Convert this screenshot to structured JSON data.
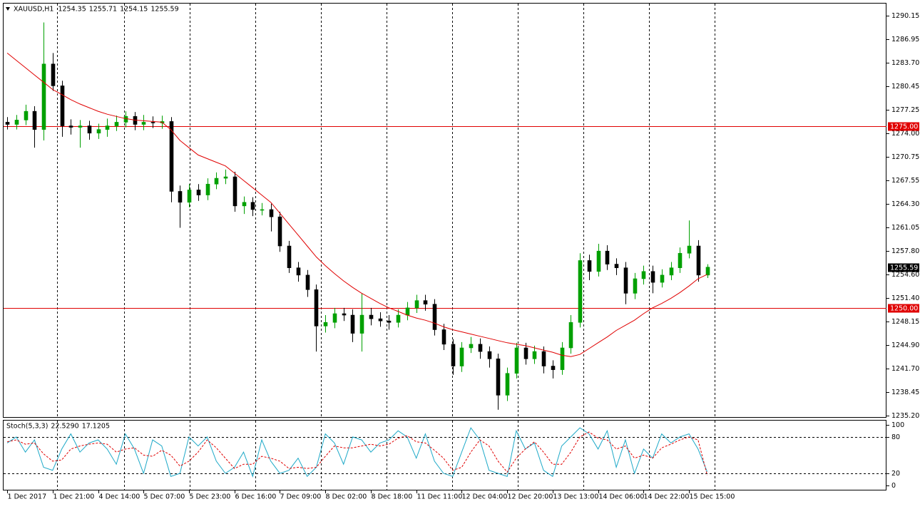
{
  "chart_data": {
    "type": "candlestick",
    "symbol": "XAUUSD,H1",
    "header_values": [
      1254.35,
      1255.71,
      1254.15,
      1255.59
    ],
    "x": [
      0,
      4,
      8,
      12,
      16,
      20,
      24,
      28,
      32,
      36,
      40,
      44,
      48,
      52,
      56,
      60,
      64,
      68,
      72,
      76,
      80,
      84,
      88,
      92,
      96,
      100,
      104,
      108,
      112,
      116,
      120,
      124,
      128,
      132,
      136,
      140,
      144,
      148,
      152,
      156,
      160,
      164,
      168,
      172,
      176,
      180,
      184,
      188,
      192,
      196,
      200,
      204,
      208,
      212,
      216,
      220,
      224,
      228,
      232,
      236,
      240,
      244,
      248,
      252,
      256,
      260,
      264,
      268,
      272,
      276,
      280,
      284,
      288,
      292,
      296,
      300,
      304,
      308
    ],
    "open": [
      1275.5,
      1275.2,
      1275.8,
      1277.0,
      1274.5,
      1283.5,
      1280.5,
      1275.0,
      1274.8,
      1275.0,
      1274.0,
      1274.5,
      1275.0,
      1275.5,
      1276.3,
      1275.2,
      1275.5,
      1275.4,
      1275.6,
      1266.0,
      1264.5,
      1266.2,
      1265.5,
      1267.0,
      1267.8,
      1268.0,
      1264.0,
      1264.5,
      1263.5,
      1263.5,
      1262.5,
      1258.5,
      1255.5,
      1254.5,
      1252.5,
      1247.5,
      1248.0,
      1249.2,
      1249.0,
      1246.5,
      1249.0,
      1248.5,
      1248.2,
      1248.0,
      1249.0,
      1250.0,
      1251.0,
      1250.5,
      1247.0,
      1245.0,
      1242.0,
      1244.5,
      1245.0,
      1244.0,
      1243.0,
      1238.0,
      1241.0,
      1244.5,
      1243.0,
      1244.0,
      1242.0,
      1241.5,
      1244.5,
      1248.0,
      1256.5,
      1255.0,
      1257.8,
      1256.0,
      1255.5,
      1252.0,
      1254.0,
      1255.0,
      1253.5,
      1254.5,
      1255.5,
      1257.5,
      1258.5,
      1254.5
    ],
    "high": [
      1276.2,
      1276.5,
      1277.9,
      1277.7,
      1289.2,
      1285.0,
      1281.2,
      1275.9,
      1275.8,
      1275.7,
      1275.3,
      1276.0,
      1276.4,
      1277.0,
      1276.9,
      1276.5,
      1276.3,
      1276.4,
      1276.2,
      1266.8,
      1267.0,
      1267.0,
      1267.8,
      1268.6,
      1269.0,
      1268.7,
      1265.3,
      1265.2,
      1264.4,
      1264.3,
      1263.2,
      1259.2,
      1256.3,
      1255.2,
      1253.2,
      1249.0,
      1250.0,
      1250.0,
      1249.8,
      1252.0,
      1250.0,
      1249.4,
      1249.0,
      1249.8,
      1250.8,
      1251.8,
      1251.8,
      1251.2,
      1247.8,
      1245.7,
      1245.3,
      1246.0,
      1245.8,
      1244.7,
      1243.7,
      1241.8,
      1245.2,
      1245.2,
      1244.8,
      1244.7,
      1242.8,
      1245.3,
      1249.0,
      1257.5,
      1257.3,
      1258.8,
      1258.6,
      1256.8,
      1256.3,
      1254.8,
      1255.8,
      1255.8,
      1255.3,
      1256.3,
      1258.3,
      1262.0,
      1259.3,
      1256.0
    ],
    "low": [
      1274.5,
      1274.5,
      1275.1,
      1272.0,
      1273.0,
      1279.8,
      1273.5,
      1273.8,
      1272.0,
      1273.1,
      1273.2,
      1273.5,
      1274.3,
      1274.8,
      1274.4,
      1274.4,
      1274.7,
      1274.6,
      1264.5,
      1261.0,
      1263.8,
      1264.7,
      1264.8,
      1266.3,
      1267.0,
      1263.2,
      1262.9,
      1262.6,
      1262.7,
      1260.5,
      1257.7,
      1254.8,
      1253.6,
      1251.5,
      1244.0,
      1246.6,
      1247.2,
      1248.2,
      1245.3,
      1244.0,
      1247.6,
      1247.4,
      1247.0,
      1247.3,
      1248.3,
      1249.3,
      1249.6,
      1246.2,
      1244.2,
      1240.8,
      1241.2,
      1243.8,
      1243.0,
      1241.8,
      1236.0,
      1237.2,
      1240.3,
      1242.2,
      1242.3,
      1241.0,
      1240.3,
      1240.8,
      1243.7,
      1247.3,
      1253.8,
      1254.3,
      1255.2,
      1254.5,
      1250.5,
      1251.2,
      1253.2,
      1252.0,
      1252.8,
      1253.8,
      1254.8,
      1256.8,
      1253.6,
      1254.1
    ],
    "close": [
      1275.2,
      1275.8,
      1277.0,
      1274.5,
      1283.5,
      1280.5,
      1275.0,
      1274.8,
      1275.0,
      1274.0,
      1274.5,
      1275.0,
      1275.5,
      1276.3,
      1275.2,
      1275.5,
      1275.4,
      1275.6,
      1266.0,
      1264.5,
      1266.2,
      1265.5,
      1267.0,
      1267.8,
      1268.0,
      1264.0,
      1264.5,
      1263.5,
      1263.5,
      1262.5,
      1258.5,
      1255.5,
      1254.5,
      1252.5,
      1247.5,
      1248.0,
      1249.2,
      1249.0,
      1246.5,
      1249.0,
      1248.5,
      1248.2,
      1248.0,
      1249.0,
      1250.0,
      1251.0,
      1250.5,
      1247.0,
      1245.0,
      1242.0,
      1244.5,
      1245.0,
      1244.0,
      1243.0,
      1238.0,
      1241.0,
      1244.5,
      1243.0,
      1244.0,
      1242.0,
      1241.5,
      1244.5,
      1248.0,
      1256.5,
      1255.0,
      1257.8,
      1256.0,
      1255.5,
      1252.0,
      1254.0,
      1255.0,
      1253.5,
      1254.5,
      1255.5,
      1257.5,
      1258.5,
      1254.5,
      1255.59
    ],
    "bull_color": "#00a000",
    "bear_color": "#000000",
    "ma": {
      "color": "#e00000",
      "values": [
        1285.0,
        1284,
        1283,
        1282,
        1281,
        1280,
        1279.3,
        1278.6,
        1278,
        1277.5,
        1277,
        1276.6,
        1276.3,
        1276,
        1275.8,
        1275.7,
        1275.6,
        1275.5,
        1274.5,
        1273,
        1272,
        1271,
        1270.5,
        1270,
        1269.5,
        1268.5,
        1267.5,
        1266.5,
        1265.5,
        1264.5,
        1263,
        1261.5,
        1260,
        1258.5,
        1257,
        1255.8,
        1254.7,
        1253.7,
        1252.8,
        1252,
        1251.3,
        1250.6,
        1250,
        1249.5,
        1249,
        1248.6,
        1248.3,
        1247.9,
        1247.4,
        1247,
        1246.7,
        1246.4,
        1246.1,
        1245.8,
        1245.5,
        1245.2,
        1245,
        1244.8,
        1244.5,
        1244.2,
        1243.9,
        1243.5,
        1243.3,
        1243.6,
        1244.4,
        1245.2,
        1246,
        1246.9,
        1247.6,
        1248.3,
        1249.2,
        1250,
        1250.6,
        1251.3,
        1252.1,
        1253,
        1254,
        1254.6
      ]
    },
    "levels": [
      {
        "value": 1275,
        "label": "1275.00"
      },
      {
        "value": 1250,
        "label": "1250.00"
      }
    ],
    "level_color": "#e00000",
    "last_price": 1255.59,
    "ylim": [
      1235.0,
      1291.8
    ],
    "yticks": [
      1290.15,
      1286.95,
      {
        "value": 1283.7,
        "label": "1283.70"
      },
      1280.45,
      1277.25,
      {
        "value": 1274,
        "label": "1274.00"
      },
      1270.75,
      1267.55,
      {
        "value": 1264.3,
        "label": "1264.30"
      },
      1261.05,
      {
        "value": 1257.8,
        "label": "1257.80"
      },
      {
        "value": 1254.6,
        "label": "1254.60"
      },
      {
        "value": 1251.4,
        "label": "1251.40"
      },
      1248.15,
      {
        "value": 1244.9,
        "label": "1244.90"
      },
      {
        "value": 1241.7,
        "label": "1241.70"
      },
      1238.45,
      {
        "value": 1235.2,
        "label": "1235.20"
      }
    ],
    "xlim": [
      -1.6,
      386.9
    ],
    "xticks": [
      {
        "value": 0,
        "label": "1 Dec 2017"
      },
      {
        "value": 20,
        "label": "1 Dec 21:00"
      },
      {
        "value": 40,
        "label": "4 Dec 14:00"
      },
      {
        "value": 60,
        "label": "5 Dec 07:00"
      },
      {
        "value": 80,
        "label": "5 Dec 23:00"
      },
      {
        "value": 100,
        "label": "6 Dec 16:00"
      },
      {
        "value": 120,
        "label": "7 Dec 09:00"
      },
      {
        "value": 140,
        "label": "8 Dec 02:00"
      },
      {
        "value": 160,
        "label": "8 Dec 18:00"
      },
      {
        "value": 180,
        "label": "11 Dec 11:00"
      },
      {
        "value": 200,
        "label": "12 Dec 04:00"
      },
      {
        "value": 220,
        "label": "12 Dec 20:00"
      },
      {
        "value": 240,
        "label": "13 Dec 13:00"
      },
      {
        "value": 260,
        "label": "14 Dec 06:00"
      },
      {
        "value": 280,
        "label": "14 Dec 22:00"
      },
      {
        "value": 300,
        "label": "15 Dec 15:00"
      }
    ],
    "indicator": {
      "type": "stochastic",
      "title": "Stoch(5,3,3)",
      "readings": [
        {
          "value": 22.529,
          "label": "22.5290"
        },
        17.1205
      ],
      "series": [
        {
          "color": "#1ea9c8",
          "dash": false,
          "values": [
            70,
            80,
            55,
            75,
            30,
            25,
            60,
            85,
            55,
            70,
            75,
            60,
            35,
            85,
            60,
            20,
            75,
            65,
            15,
            20,
            80,
            65,
            80,
            40,
            20,
            30,
            55,
            15,
            75,
            40,
            20,
            25,
            45,
            15,
            30,
            85,
            70,
            35,
            80,
            75,
            55,
            70,
            75,
            90,
            80,
            45,
            85,
            40,
            20,
            15,
            55,
            95,
            75,
            25,
            20,
            15,
            90,
            60,
            70,
            25,
            15,
            65,
            80,
            95,
            85,
            60,
            90,
            30,
            75,
            20,
            60,
            45,
            85,
            70,
            80,
            85,
            60,
            22.529
          ]
        },
        {
          "color": "#e00000",
          "dash": true,
          "values": [
            72,
            75,
            68,
            70,
            52,
            40,
            42,
            60,
            65,
            68,
            70,
            68,
            55,
            60,
            62,
            50,
            48,
            58,
            50,
            32,
            40,
            55,
            75,
            62,
            45,
            28,
            35,
            35,
            48,
            45,
            40,
            28,
            30,
            28,
            30,
            48,
            65,
            62,
            62,
            65,
            68,
            65,
            68,
            78,
            82,
            72,
            70,
            58,
            45,
            25,
            30,
            55,
            75,
            65,
            40,
            22,
            45,
            60,
            72,
            55,
            35,
            35,
            55,
            80,
            88,
            78,
            75,
            60,
            65,
            45,
            50,
            45,
            62,
            68,
            75,
            80,
            75,
            17.1205
          ]
        }
      ],
      "ylim": [
        -7,
        108
      ],
      "yticks": [
        100,
        80,
        20,
        0
      ],
      "levels": [
        80,
        20
      ]
    }
  }
}
